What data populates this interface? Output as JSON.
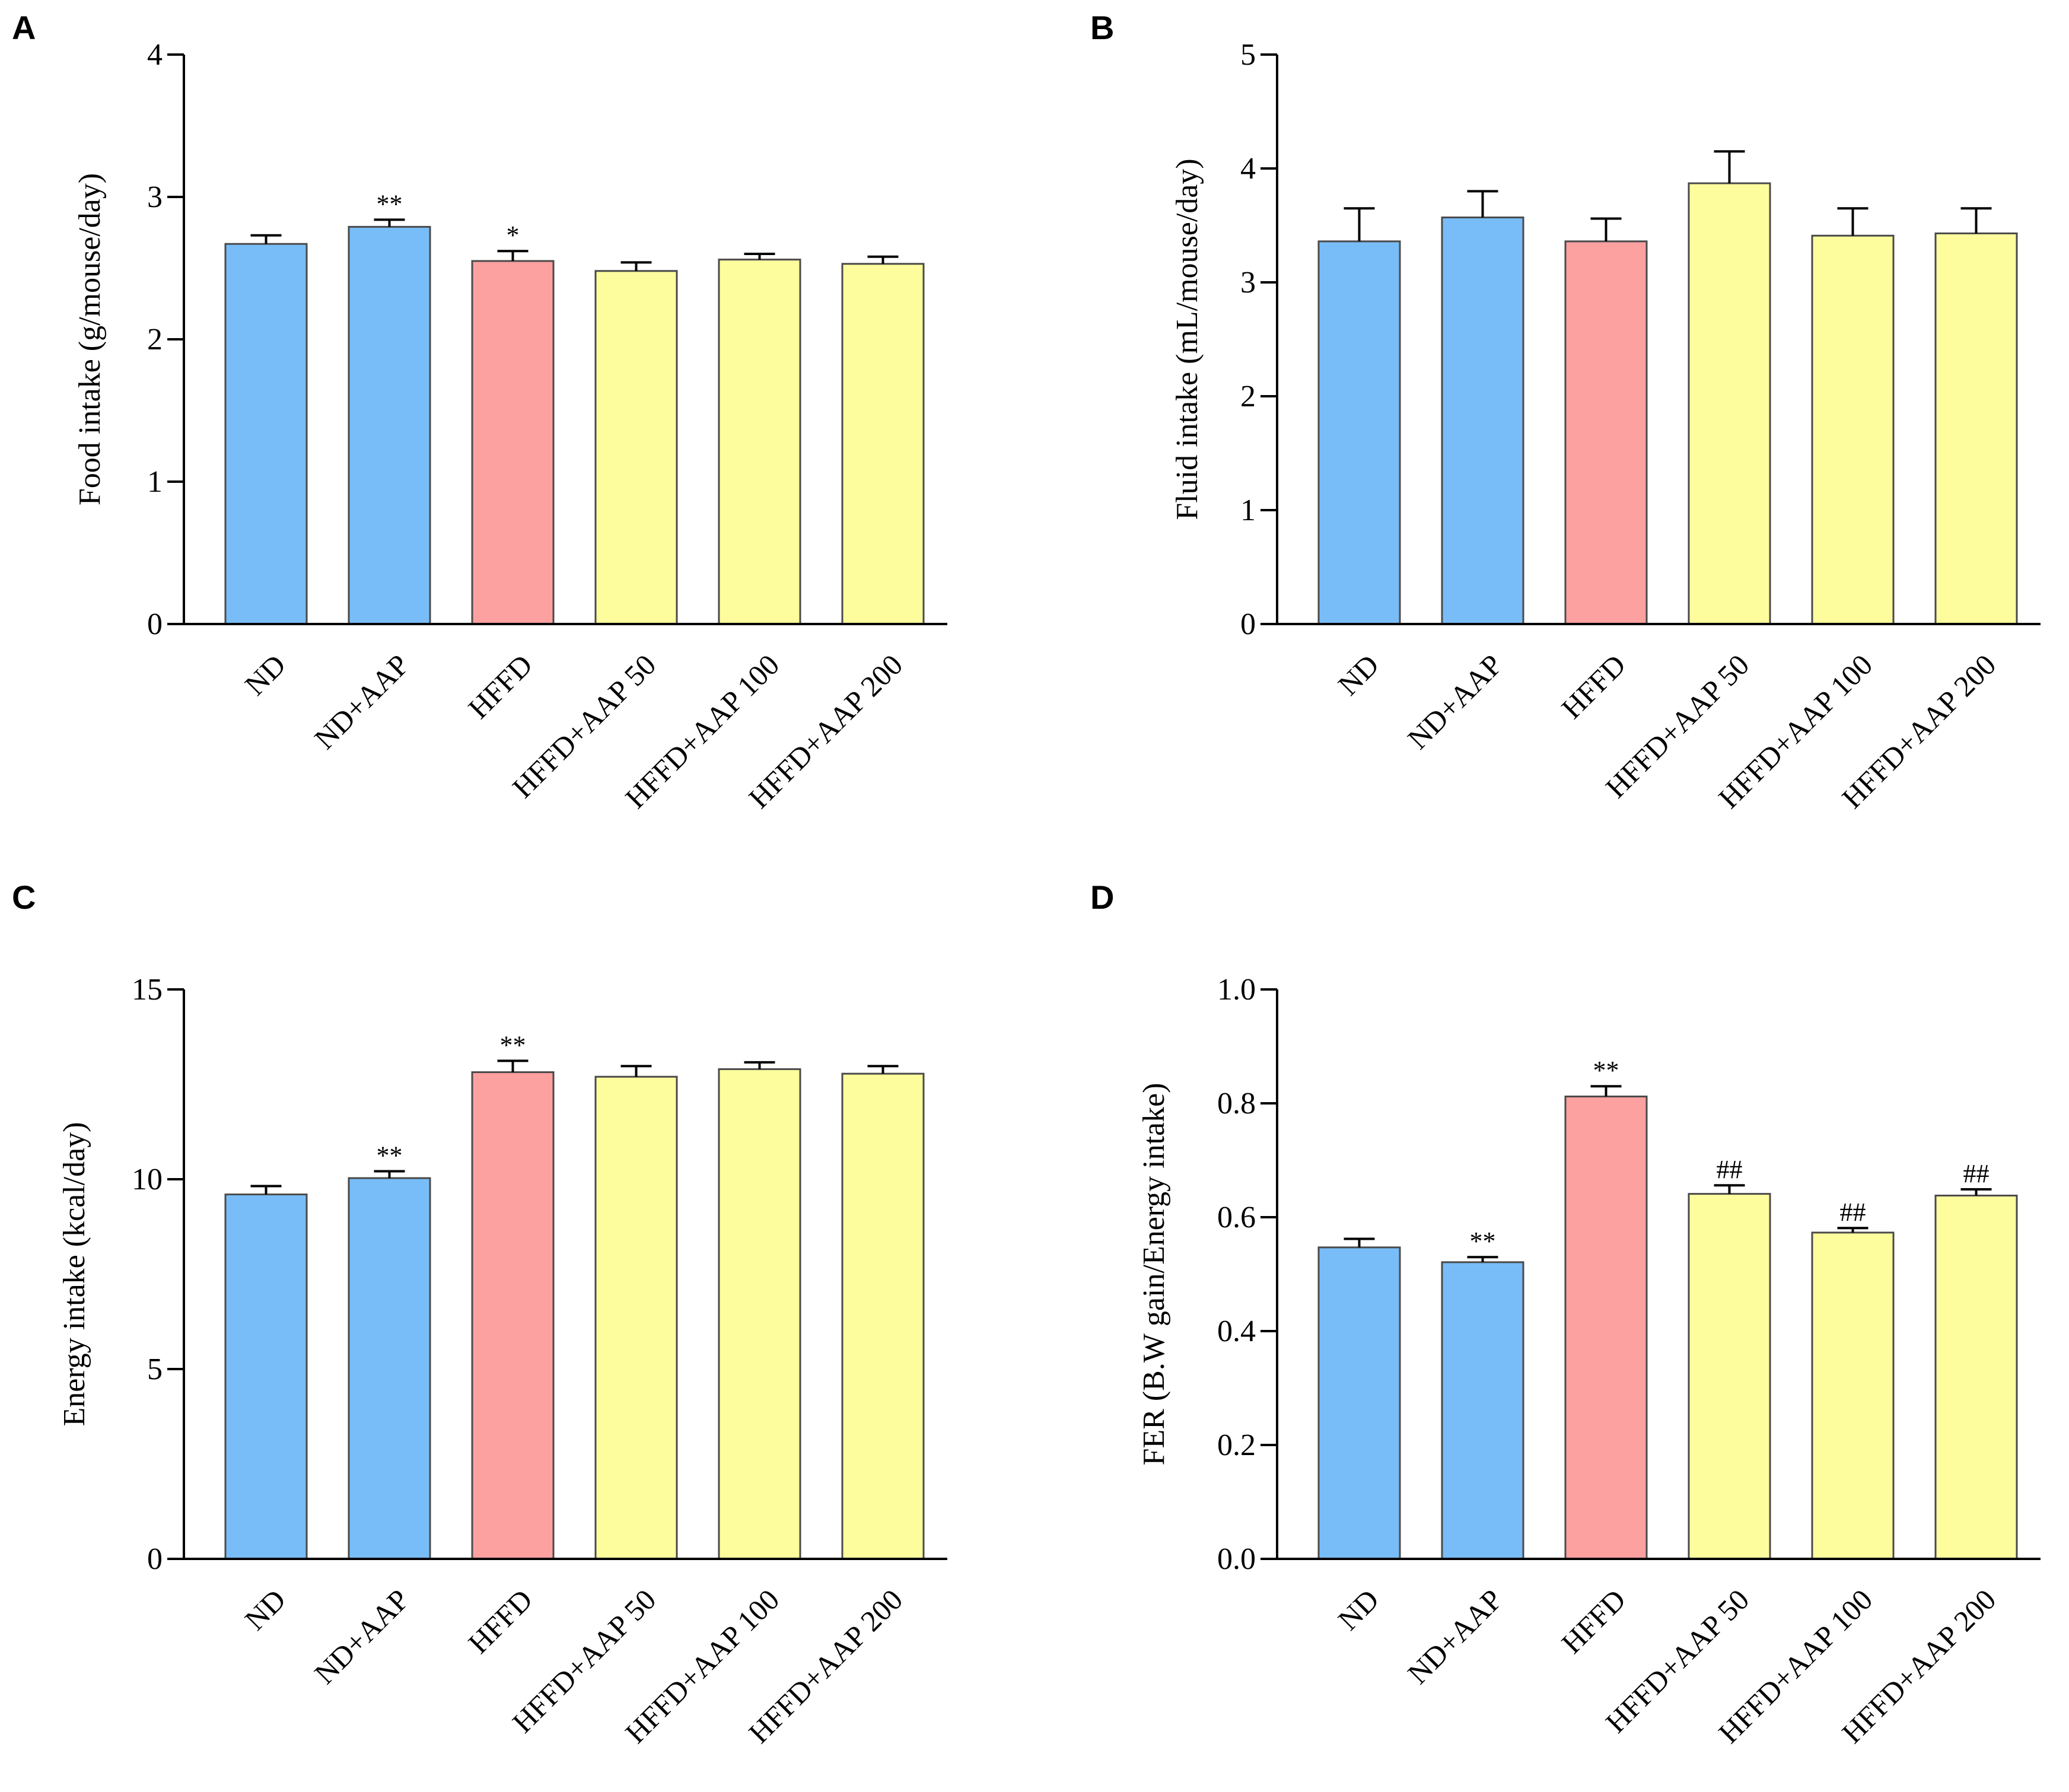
{
  "colors": {
    "normal": "#79bdf8",
    "hffd": "#fda0a0",
    "treated": "#fdfd9e"
  },
  "chart_data": [
    {
      "type": "bar",
      "panel": "A",
      "categories": [
        "ND",
        "ND+AAP",
        "HFFD",
        "HFFD+AAP 50",
        "HFFD+AAP 100",
        "HFFD+AAP 200"
      ],
      "values": [
        2.67,
        2.79,
        2.55,
        2.48,
        2.56,
        2.53
      ],
      "errors": [
        0.06,
        0.05,
        0.07,
        0.06,
        0.04,
        0.05
      ],
      "significance": [
        "",
        "**",
        "*",
        "",
        "",
        ""
      ],
      "bar_colors": [
        "normal",
        "normal",
        "hffd",
        "treated",
        "treated",
        "treated"
      ],
      "xlabel": "",
      "ylabel": "Food intake (g/mouse/day)",
      "ylim": [
        0,
        4
      ],
      "yticks": [
        0,
        1,
        2,
        3,
        4
      ],
      "ytick_labels": [
        "0",
        "1",
        "2",
        "3",
        "4"
      ]
    },
    {
      "type": "bar",
      "panel": "B",
      "categories": [
        "ND",
        "ND+AAP",
        "HFFD",
        "HFFD+AAP 50",
        "HFFD+AAP 100",
        "HFFD+AAP 200"
      ],
      "values": [
        3.36,
        3.57,
        3.36,
        3.87,
        3.41,
        3.43
      ],
      "errors": [
        0.29,
        0.23,
        0.2,
        0.28,
        0.24,
        0.22
      ],
      "significance": [
        "",
        "",
        "",
        "",
        "",
        ""
      ],
      "bar_colors": [
        "normal",
        "normal",
        "hffd",
        "treated",
        "treated",
        "treated"
      ],
      "xlabel": "",
      "ylabel": "Fluid intake (mL/mouse/day)",
      "ylim": [
        0,
        5
      ],
      "yticks": [
        0,
        1,
        2,
        3,
        4,
        5
      ],
      "ytick_labels": [
        "0",
        "1",
        "2",
        "3",
        "4",
        "5"
      ]
    },
    {
      "type": "bar",
      "panel": "C",
      "categories": [
        "ND",
        "ND+AAP",
        "HFFD",
        "HFFD+AAP 50",
        "HFFD+AAP 100",
        "HFFD+AAP 200"
      ],
      "values": [
        9.6,
        10.03,
        12.82,
        12.7,
        12.9,
        12.78
      ],
      "errors": [
        0.22,
        0.18,
        0.3,
        0.28,
        0.18,
        0.2
      ],
      "significance": [
        "",
        "**",
        "**",
        "",
        "",
        ""
      ],
      "bar_colors": [
        "normal",
        "normal",
        "hffd",
        "treated",
        "treated",
        "treated"
      ],
      "xlabel": "",
      "ylabel": "Energy intake (kcal/day)",
      "ylim": [
        0,
        15
      ],
      "yticks": [
        0,
        5,
        10,
        15
      ],
      "ytick_labels": [
        "0",
        "5",
        "10",
        "15"
      ]
    },
    {
      "type": "bar",
      "panel": "D",
      "categories": [
        "ND",
        "ND+AAP",
        "HFFD",
        "HFFD+AAP 50",
        "HFFD+AAP 100",
        "HFFD+AAP 200"
      ],
      "values": [
        0.547,
        0.521,
        0.812,
        0.641,
        0.573,
        0.638
      ],
      "errors": [
        0.015,
        0.009,
        0.018,
        0.015,
        0.008,
        0.011
      ],
      "significance": [
        "",
        "**",
        "**",
        "##",
        "##",
        "##"
      ],
      "bar_colors": [
        "normal",
        "normal",
        "hffd",
        "treated",
        "treated",
        "treated"
      ],
      "xlabel": "",
      "ylabel": "FER (B.W gain/Energy intake)",
      "ylim": [
        0,
        1
      ],
      "yticks": [
        0,
        0.2,
        0.4,
        0.6,
        0.8,
        1.0
      ],
      "ytick_labels": [
        "0.0",
        "0.2",
        "0.4",
        "0.6",
        "0.8",
        "1.0"
      ]
    }
  ]
}
